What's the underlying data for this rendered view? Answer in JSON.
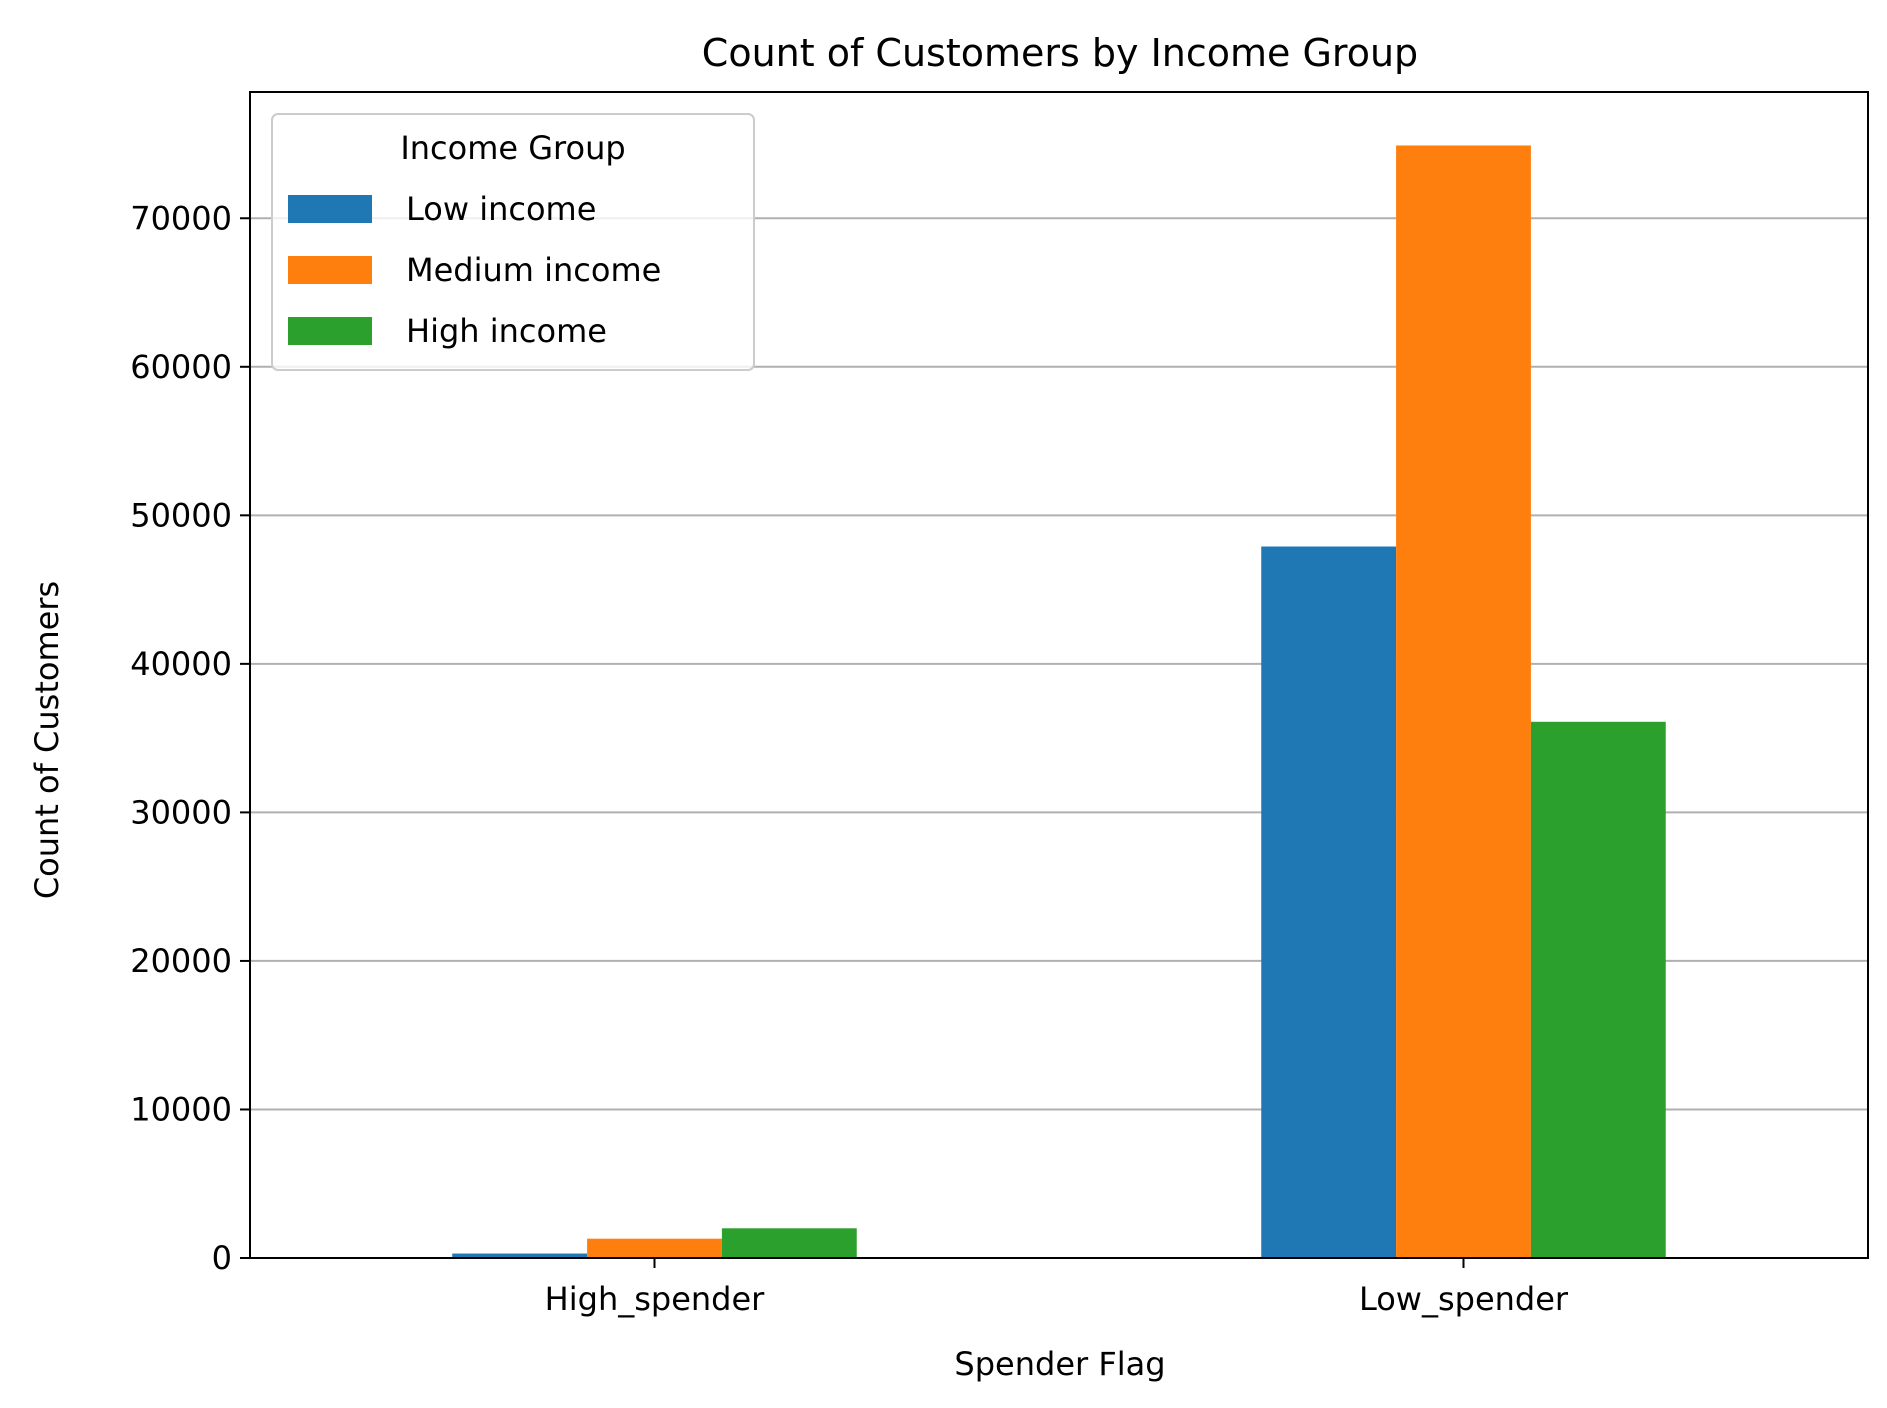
{
  "chart_data": {
    "type": "bar",
    "title": "Count of Customers by Income Group",
    "xlabel": "Spender Flag",
    "ylabel": "Count of Customers",
    "categories": [
      "High_spender",
      "Low_spender"
    ],
    "series": [
      {
        "name": "Low income",
        "color": "#1f77b4",
        "values": [
          300,
          47900
        ]
      },
      {
        "name": "Medium income",
        "color": "#ff7f0e",
        "values": [
          1300,
          74900
        ]
      },
      {
        "name": "High income",
        "color": "#2ca02c",
        "values": [
          2000,
          36100
        ]
      }
    ],
    "ylim": [
      0,
      78500
    ],
    "yticks": [
      0,
      10000,
      20000,
      30000,
      40000,
      50000,
      60000,
      70000
    ],
    "ytick_labels": [
      "0",
      "10000",
      "20000",
      "30000",
      "40000",
      "50000",
      "60000",
      "70000"
    ],
    "grid": "horizontal",
    "legend": {
      "title": "Income Group",
      "position": "upper-left"
    }
  }
}
